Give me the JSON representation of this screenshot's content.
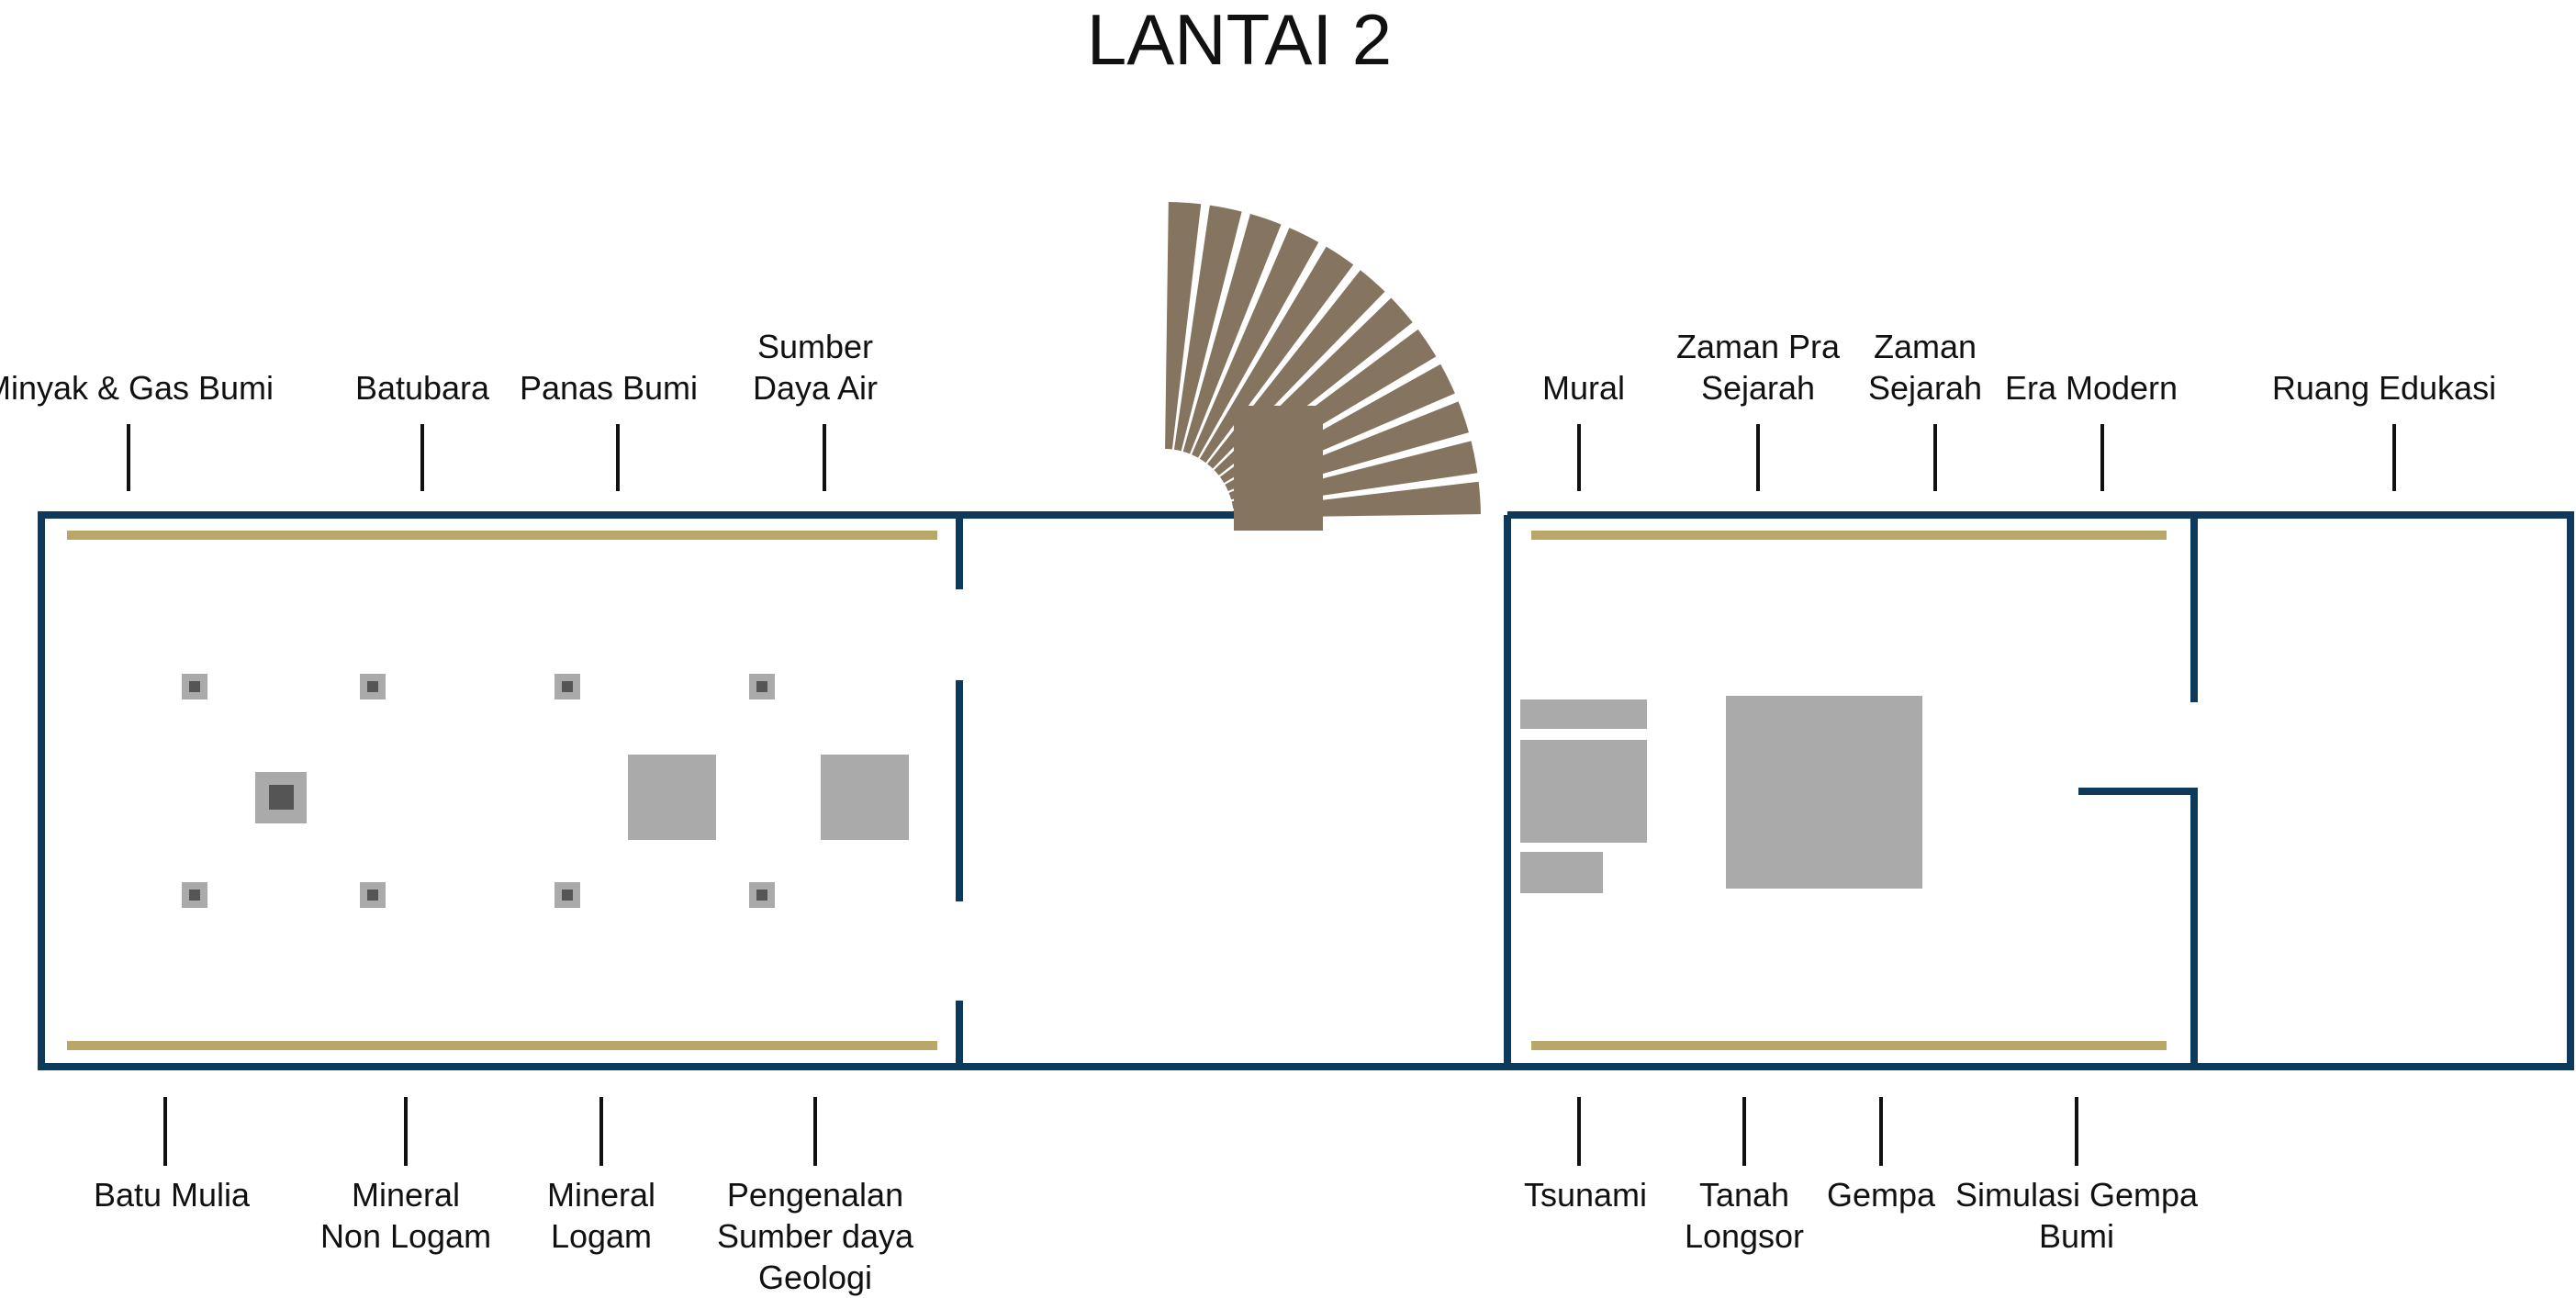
{
  "title": "LANTAI 2",
  "colors": {
    "wall": "#0d3a5a",
    "panel": "#b9a769",
    "exhibit": "#aaaaaa",
    "exhibit_core": "#555555",
    "stairs": "#85745f",
    "leader": "#111111"
  },
  "labels_top": [
    {
      "lines": [
        "Minyak & Gas Bumi"
      ]
    },
    {
      "lines": [
        "Batubara"
      ]
    },
    {
      "lines": [
        "Panas Bumi"
      ]
    },
    {
      "lines": [
        "Sumber",
        "Daya Air"
      ]
    },
    {
      "lines": [
        "Mural"
      ]
    },
    {
      "lines": [
        "Zaman Pra",
        "Sejarah"
      ]
    },
    {
      "lines": [
        "Zaman",
        "Sejarah"
      ]
    },
    {
      "lines": [
        "Era Modern"
      ]
    },
    {
      "lines": [
        "Ruang Edukasi"
      ]
    }
  ],
  "labels_bottom": [
    {
      "lines": [
        "Batu Mulia"
      ]
    },
    {
      "lines": [
        "Mineral",
        "Non Logam"
      ]
    },
    {
      "lines": [
        "Mineral",
        "Logam"
      ]
    },
    {
      "lines": [
        "Pengenalan",
        "Sumber daya",
        "Geologi"
      ]
    },
    {
      "lines": [
        "Tsunami"
      ]
    },
    {
      "lines": [
        "Tanah",
        "Longsor"
      ]
    },
    {
      "lines": [
        "Gempa"
      ]
    },
    {
      "lines": [
        "Simulasi Gempa",
        "Bumi"
      ]
    }
  ]
}
